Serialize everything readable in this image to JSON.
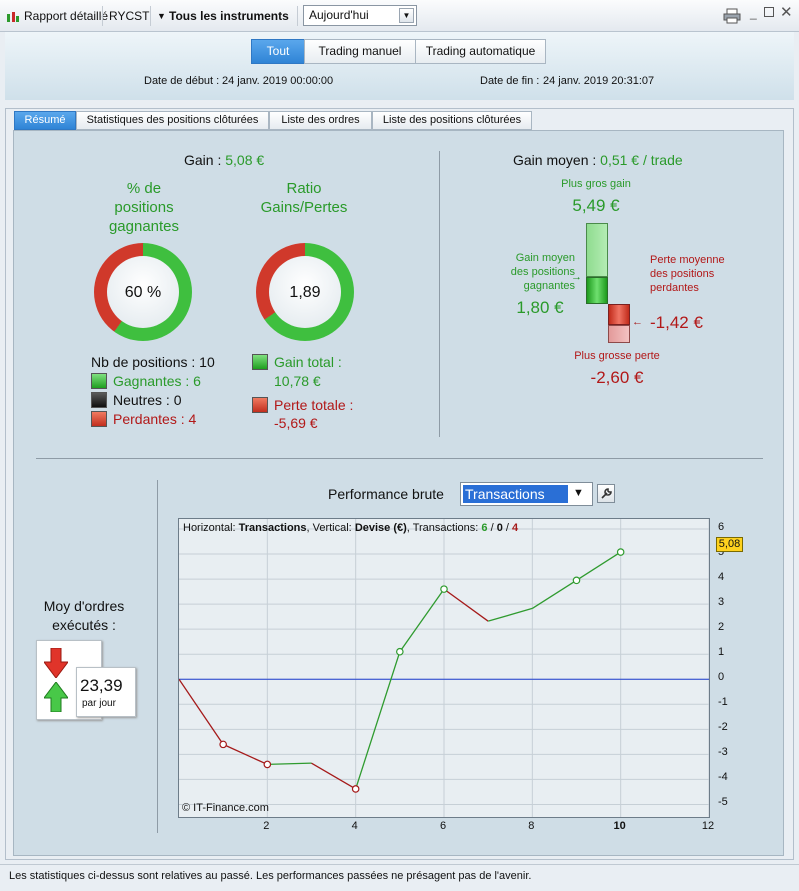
{
  "toolbar": {
    "report_label": "Rapport détaillé",
    "account_label": "RYCST",
    "instruments_label": "Tous les instruments",
    "period_value": "Aujourd'hui"
  },
  "filters": {
    "tabs": [
      "Tout",
      "Trading manuel",
      "Trading automatique"
    ],
    "start_label": "Date de début :",
    "start_value": "24 janv. 2019 00:00:00",
    "end_label": "Date de fin :",
    "end_value": "24 janv. 2019 20:31:07"
  },
  "tabs": [
    "Résumé",
    "Statistiques des positions clôturées",
    "Liste des ordres",
    "Liste des positions clôturées"
  ],
  "summary": {
    "gain_label": "Gain :",
    "gain_value": "5,08 €",
    "win_pct_title": "% de positions gagnantes",
    "win_pct_value": "60 %",
    "win_pct_fraction": 0.6,
    "ratio_title": "Ratio Gains/Pertes",
    "ratio_value": "1,89",
    "ratio_fraction": 0.655,
    "positions_label": "Nb de positions : 10",
    "winning_label": "Gagnantes : 6",
    "neutral_label": "Neutres : 0",
    "losing_label": "Perdantes : 4",
    "total_gain_label": "Gain total :",
    "total_gain_value": "10,78 €",
    "total_loss_label": "Perte totale :",
    "total_loss_value": "-5,69 €"
  },
  "avg": {
    "title": "Gain moyen :",
    "value": "0,51 € / trade",
    "max_gain_label": "Plus gros gain",
    "max_gain_value": "5,49 €",
    "avg_win_label": "Gain moyen des positions gagnantes",
    "avg_win_value": "1,80 €",
    "avg_loss_label": "Perte moyenne des positions perdantes",
    "avg_loss_value": "-1,42 €",
    "max_loss_label": "Plus grosse perte",
    "max_loss_value": "-2,60 €"
  },
  "orders": {
    "title": "Moy d'ordres exécutés :",
    "value": "23,39",
    "unit": "par jour"
  },
  "chart_header": {
    "title": "Performance brute",
    "select_value": "Transactions"
  },
  "chart_data": {
    "type": "line",
    "info_prefix": "Horizontal:",
    "info_h": "Transactions",
    "info_mid": ", Vertical:",
    "info_v": "Devise (€)",
    "info_tx": ", Transactions:",
    "info_win": "6",
    "info_neutral": "0",
    "info_loss": "4",
    "copyright": "© IT-Finance.com",
    "x": [
      0,
      1,
      2,
      3,
      4,
      5,
      6,
      7,
      8,
      9,
      10
    ],
    "y": [
      0,
      -2.6,
      -3.4,
      -3.35,
      -4.38,
      1.1,
      3.6,
      2.32,
      2.83,
      3.95,
      5.08
    ],
    "markers": [
      1,
      2,
      4,
      5,
      6,
      9,
      10
    ],
    "xticks": [
      "2",
      "4",
      "6",
      "8",
      "10",
      "12"
    ],
    "xtick_values": [
      2,
      4,
      6,
      8,
      10,
      12
    ],
    "yticks": [
      "6",
      "5",
      "4",
      "3",
      "2",
      "1",
      "0",
      "-1",
      "-2",
      "-3",
      "-4",
      "-5"
    ],
    "ytick_values": [
      6,
      5,
      4,
      3,
      2,
      1,
      0,
      -1,
      -2,
      -3,
      -4,
      -5
    ],
    "xlim": [
      0,
      12
    ],
    "ylim": [
      -5.5,
      6.4
    ],
    "last_value_label": "5,08",
    "color_up": "#2f9b2f",
    "color_down": "#a51a1a",
    "zero_color": "#1f3fd0"
  },
  "footer": {
    "text": "Les statistiques ci-dessus sont relatives au passé. Les performances passées ne présagent pas de l'avenir."
  }
}
